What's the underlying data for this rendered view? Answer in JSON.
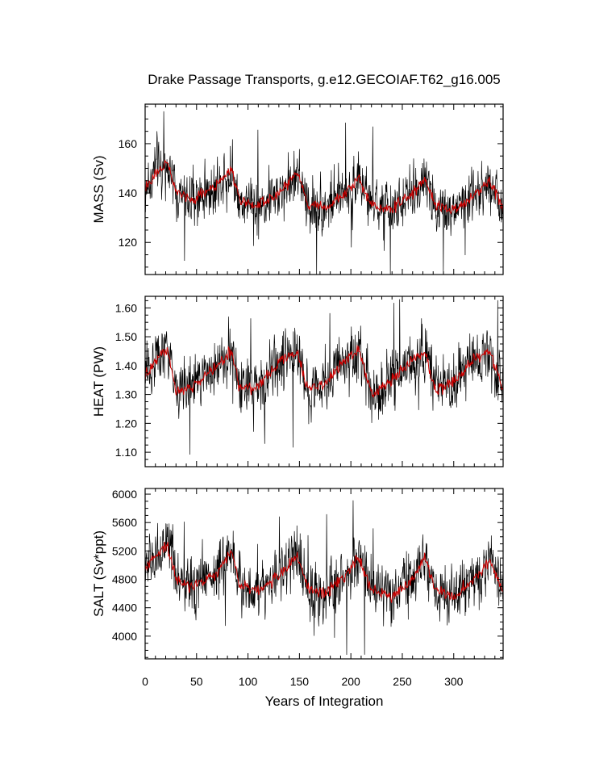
{
  "chart_data": {
    "type": "line",
    "title": "Drake Passage Transports, g.e12.GECOIAF.T62_g16.005",
    "xlabel": "Years of Integration",
    "xlim": [
      0,
      348
    ],
    "xticks": [
      0,
      50,
      100,
      150,
      200,
      250,
      300
    ],
    "cycle_years": 62,
    "cycle_starts": [
      0,
      62,
      124,
      186,
      248,
      310
    ],
    "colors": {
      "monthly": "#000000",
      "smoothed": "#cc0000",
      "axis": "#000000"
    },
    "panels": [
      {
        "ylabel": "MASS (Sv)",
        "ylim": [
          107,
          176
        ],
        "yticks": [
          120,
          140,
          160
        ],
        "series": [
          {
            "style": "monthly",
            "years": [
              0,
              10,
              22,
              30,
              45,
              70,
              84,
              92,
              110,
              130,
              148,
              158,
              175,
              195,
              208,
              220,
              240,
              260,
              272,
              282,
              300,
              320,
              335,
              348
            ],
            "values": [
              142,
              148,
              152,
              140,
              137,
              143,
              150,
              137,
              135,
              140,
              148,
              136,
              134,
              140,
              146,
              135,
              133,
              140,
              146,
              135,
              133,
              139,
              145,
              134
            ],
            "spread": 9,
            "min": 107,
            "max": 174
          },
          {
            "style": "smoothed",
            "years": [
              0,
              10,
              22,
              30,
              45,
              70,
              84,
              92,
              110,
              130,
              148,
              158,
              175,
              195,
              208,
              220,
              240,
              260,
              272,
              282,
              300,
              320,
              335,
              348
            ],
            "values": [
              142,
              148,
              152,
              140,
              137,
              143,
              150,
              137,
              135,
              140,
              148,
              136,
              134,
              140,
              146,
              135,
              133,
              140,
              146,
              135,
              133,
              139,
              145,
              134
            ]
          }
        ]
      },
      {
        "ylabel": "HEAT (PW)",
        "ylim": [
          1.05,
          1.64
        ],
        "yticks": [
          1.1,
          1.2,
          1.3,
          1.4,
          1.5,
          1.6
        ],
        "series": [
          {
            "style": "monthly",
            "years": [
              0,
              10,
              22,
              30,
              45,
              70,
              84,
              92,
              110,
              130,
              148,
              158,
              175,
              195,
              208,
              220,
              240,
              260,
              272,
              282,
              300,
              320,
              335,
              348
            ],
            "values": [
              1.36,
              1.42,
              1.45,
              1.31,
              1.33,
              1.4,
              1.45,
              1.32,
              1.33,
              1.41,
              1.45,
              1.32,
              1.34,
              1.42,
              1.45,
              1.3,
              1.35,
              1.42,
              1.45,
              1.32,
              1.34,
              1.42,
              1.45,
              1.32
            ],
            "spread": 0.08,
            "min": 1.06,
            "max": 1.63
          },
          {
            "style": "smoothed",
            "years": [
              0,
              10,
              22,
              30,
              45,
              70,
              84,
              92,
              110,
              130,
              148,
              158,
              175,
              195,
              208,
              220,
              240,
              260,
              272,
              282,
              300,
              320,
              335,
              348
            ],
            "values": [
              1.36,
              1.42,
              1.45,
              1.31,
              1.33,
              1.4,
              1.45,
              1.32,
              1.33,
              1.41,
              1.45,
              1.32,
              1.34,
              1.42,
              1.45,
              1.3,
              1.35,
              1.42,
              1.45,
              1.32,
              1.34,
              1.42,
              1.45,
              1.32
            ]
          }
        ]
      },
      {
        "ylabel": "SALT (Sv*ppt)",
        "ylim": [
          3680,
          6080
        ],
        "yticks": [
          4000,
          4400,
          4800,
          5200,
          5600,
          6000
        ],
        "series": [
          {
            "style": "monthly",
            "years": [
              0,
              10,
              22,
              30,
              45,
              70,
              84,
              92,
              110,
              130,
              148,
              158,
              175,
              195,
              208,
              220,
              240,
              260,
              272,
              282,
              300,
              320,
              335,
              348
            ],
            "values": [
              4950,
              5150,
              5250,
              4800,
              4700,
              4900,
              5200,
              4700,
              4650,
              4850,
              5150,
              4650,
              4600,
              4850,
              5100,
              4650,
              4550,
              4800,
              5100,
              4650,
              4550,
              4800,
              5050,
              4600
            ],
            "spread": 320,
            "min": 3720,
            "max": 6040
          },
          {
            "style": "smoothed",
            "years": [
              0,
              10,
              22,
              30,
              45,
              70,
              84,
              92,
              110,
              130,
              148,
              158,
              175,
              195,
              208,
              220,
              240,
              260,
              272,
              282,
              300,
              320,
              335,
              348
            ],
            "values": [
              4950,
              5150,
              5250,
              4800,
              4700,
              4900,
              5200,
              4700,
              4650,
              4850,
              5150,
              4650,
              4600,
              4850,
              5100,
              4650,
              4550,
              4800,
              5100,
              4650,
              4550,
              4800,
              5050,
              4600
            ]
          }
        ]
      }
    ]
  }
}
